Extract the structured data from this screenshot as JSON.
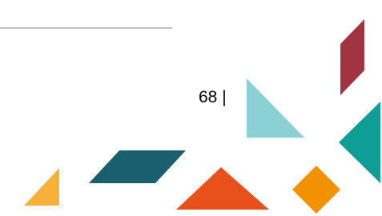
{
  "footer": {
    "page_number": "68 |"
  }
}
